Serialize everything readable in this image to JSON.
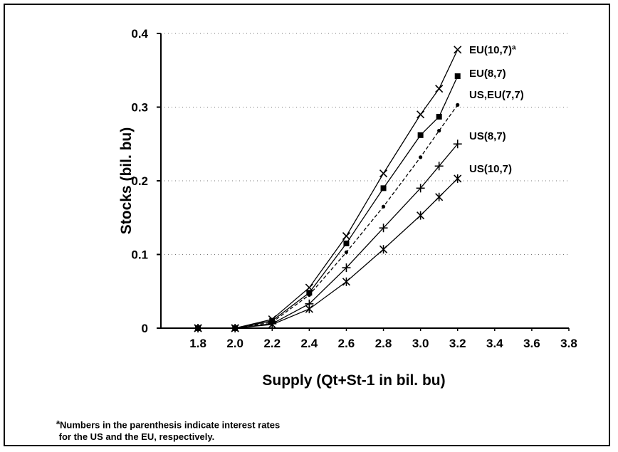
{
  "chart_data": {
    "type": "line",
    "xlabel": "Supply (Qt+St-1 in bil. bu)",
    "ylabel": "Stocks (bil. bu)",
    "xlim": [
      1.6,
      3.8
    ],
    "ylim": [
      0,
      0.4
    ],
    "x_ticks": [
      "1.8",
      "2.0",
      "2.2",
      "2.4",
      "2.6",
      "2.8",
      "3.0",
      "3.2",
      "3.4",
      "3.6",
      "3.8"
    ],
    "y_ticks": [
      "0",
      "0.1",
      "0.2",
      "0.3",
      "0.4"
    ],
    "grid": "horizontal dotted",
    "x": [
      1.8,
      2.0,
      2.2,
      2.4,
      2.6,
      2.8,
      3.0,
      3.1,
      3.2
    ],
    "series": [
      {
        "name": "EU(10,7)ª",
        "marker": "x",
        "dash": "",
        "values": [
          0,
          0,
          0.012,
          0.055,
          0.125,
          0.21,
          0.29,
          0.325,
          0.378
        ]
      },
      {
        "name": "EU(8,7)",
        "marker": "square",
        "dash": "",
        "values": [
          0,
          0,
          0.01,
          0.048,
          0.115,
          0.19,
          0.262,
          0.287,
          0.342
        ]
      },
      {
        "name": "US,EU(7,7)",
        "marker": "dot",
        "dash": "5,3",
        "values": [
          0,
          0,
          0.008,
          0.045,
          0.103,
          0.165,
          0.232,
          0.268,
          0.303
        ]
      },
      {
        "name": "US(8,7)",
        "marker": "plus",
        "dash": "",
        "values": [
          0,
          0,
          0.006,
          0.033,
          0.082,
          0.136,
          0.19,
          0.22,
          0.25
        ]
      },
      {
        "name": "US(10,7)",
        "marker": "asterisk",
        "dash": "",
        "values": [
          0,
          0,
          0.005,
          0.026,
          0.063,
          0.107,
          0.153,
          0.178,
          0.203
        ]
      }
    ]
  },
  "footnote": {
    "line1_mark": "a",
    "line1": "Numbers in the parenthesis indicate interest rates",
    "line2": "for the US and the EU, respectively."
  }
}
